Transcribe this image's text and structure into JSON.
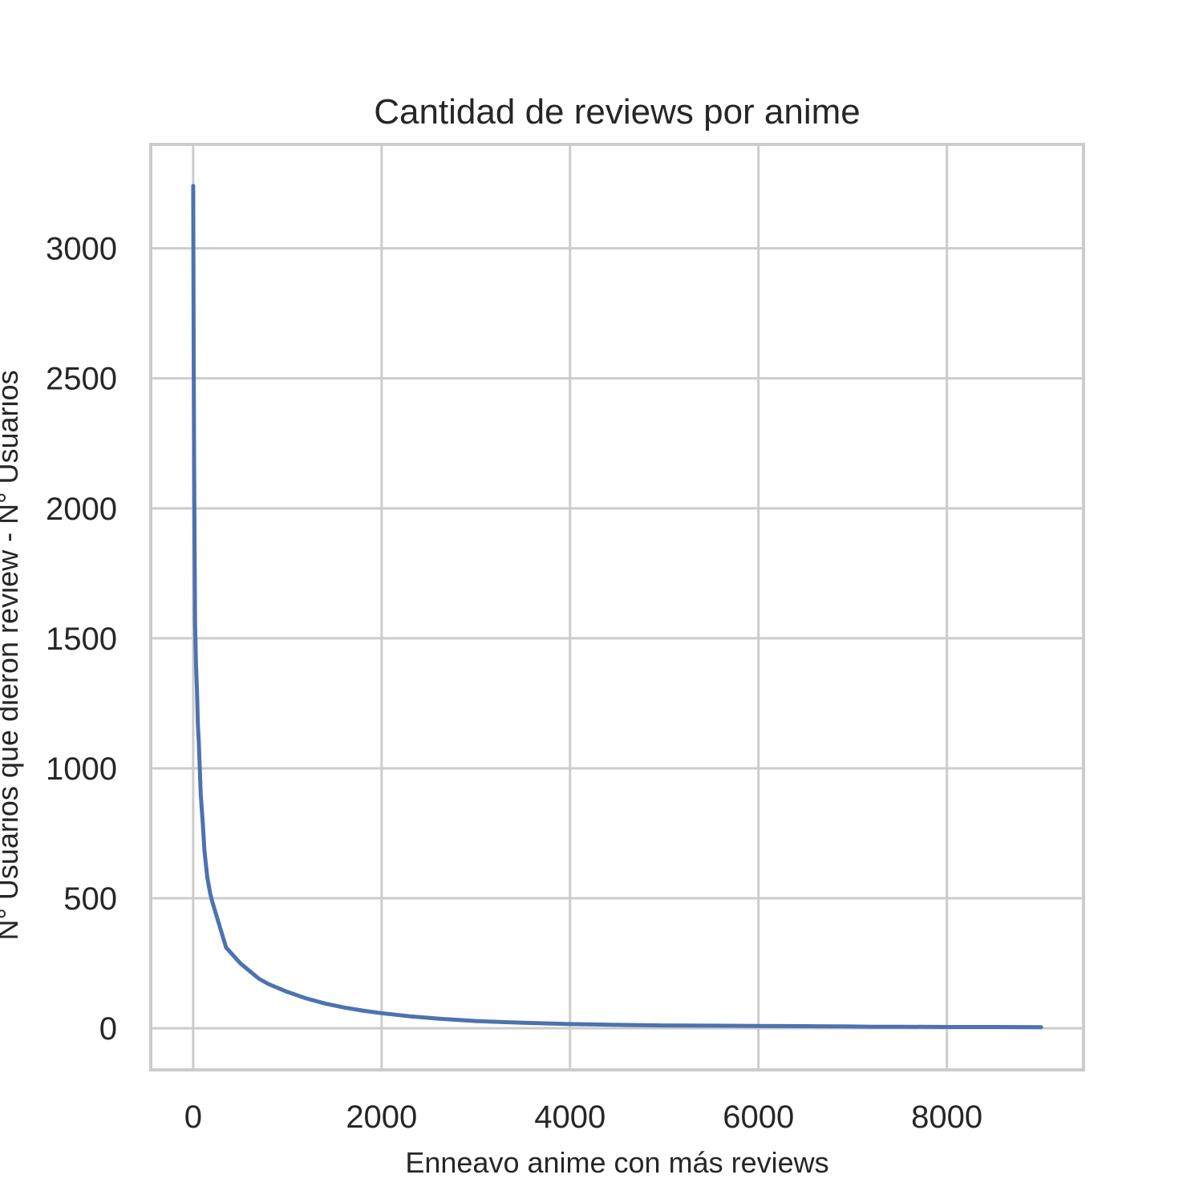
{
  "chart_data": {
    "type": "line",
    "title": "Cantidad de reviews por anime",
    "xlabel": "Enneavo anime con más reviews",
    "ylabel": "N° Usuarios que dieron review - N° Usuarios",
    "xlim": [
      -450,
      9450
    ],
    "ylim": [
      -160,
      3400
    ],
    "x_ticks": [
      0,
      2000,
      4000,
      6000,
      8000
    ],
    "y_ticks": [
      0,
      500,
      1000,
      1500,
      2000,
      2500,
      3000
    ],
    "grid": true,
    "series_color": "#4c72b0",
    "series": [
      {
        "x": [
          0,
          5,
          10,
          20,
          30,
          40,
          50,
          60,
          70,
          80,
          100,
          120,
          150,
          180,
          200,
          250,
          300,
          350,
          400,
          450,
          500,
          600,
          700,
          800,
          900,
          1000,
          1200,
          1400,
          1600,
          1800,
          2000,
          2300,
          2600,
          3000,
          3500,
          4000,
          4500,
          5000,
          5500,
          6000,
          6500,
          7000,
          7200,
          7500,
          8000,
          8500,
          9000
        ],
        "y": [
          3240,
          2600,
          2200,
          1560,
          1400,
          1300,
          1170,
          1100,
          1000,
          900,
          800,
          680,
          580,
          520,
          490,
          430,
          370,
          310,
          290,
          270,
          250,
          220,
          190,
          170,
          155,
          140,
          115,
          95,
          80,
          68,
          58,
          46,
          37,
          28,
          21,
          16,
          13,
          11,
          10,
          9,
          8,
          7,
          6,
          6,
          5,
          5,
          4
        ]
      }
    ]
  }
}
